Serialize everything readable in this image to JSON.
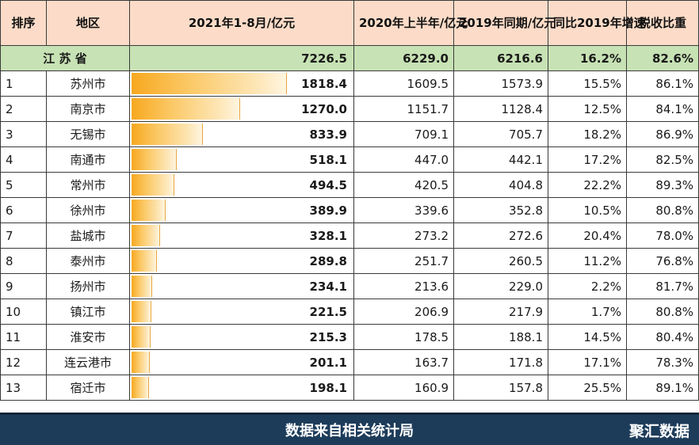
{
  "header": {
    "rank": "排序",
    "region": "地区",
    "col_2021": "2021年1-8月/亿元",
    "col_2020": "2020年上半年/亿元",
    "col_2019": "2019年同期/亿元",
    "col_growth": "同比2019年增速",
    "col_tax": "税收比重"
  },
  "total": {
    "label": "江 苏 省",
    "v2021": "7226.5",
    "v2020": "6229.0",
    "v2019": "6216.6",
    "growth": "16.2%",
    "tax": "82.6%"
  },
  "rows": [
    {
      "rank": "1",
      "region": "苏州市",
      "v2021": "1818.4",
      "v2020": "1609.5",
      "v2019": "1573.9",
      "growth": "15.5%",
      "tax": "86.1%"
    },
    {
      "rank": "2",
      "region": "南京市",
      "v2021": "1270.0",
      "v2020": "1151.7",
      "v2019": "1128.4",
      "growth": "12.5%",
      "tax": "84.1%"
    },
    {
      "rank": "3",
      "region": "无锡市",
      "v2021": "833.9",
      "v2020": "709.1",
      "v2019": "705.7",
      "growth": "18.2%",
      "tax": "86.9%"
    },
    {
      "rank": "4",
      "region": "南通市",
      "v2021": "518.1",
      "v2020": "447.0",
      "v2019": "442.1",
      "growth": "17.2%",
      "tax": "82.5%"
    },
    {
      "rank": "5",
      "region": "常州市",
      "v2021": "494.5",
      "v2020": "420.5",
      "v2019": "404.8",
      "growth": "22.2%",
      "tax": "89.3%"
    },
    {
      "rank": "6",
      "region": "徐州市",
      "v2021": "389.9",
      "v2020": "339.6",
      "v2019": "352.8",
      "growth": "10.5%",
      "tax": "80.8%"
    },
    {
      "rank": "7",
      "region": "盐城市",
      "v2021": "328.1",
      "v2020": "273.2",
      "v2019": "272.6",
      "growth": "20.4%",
      "tax": "78.0%"
    },
    {
      "rank": "8",
      "region": "泰州市",
      "v2021": "289.8",
      "v2020": "251.7",
      "v2019": "260.5",
      "growth": "11.2%",
      "tax": "76.8%"
    },
    {
      "rank": "9",
      "region": "扬州市",
      "v2021": "234.1",
      "v2020": "213.6",
      "v2019": "229.0",
      "growth": "2.2%",
      "tax": "81.7%"
    },
    {
      "rank": "10",
      "region": "镇江市",
      "v2021": "221.5",
      "v2020": "206.9",
      "v2019": "217.9",
      "growth": "1.7%",
      "tax": "80.8%"
    },
    {
      "rank": "11",
      "region": "淮安市",
      "v2021": "215.3",
      "v2020": "178.5",
      "v2019": "188.1",
      "growth": "14.5%",
      "tax": "80.4%"
    },
    {
      "rank": "12",
      "region": "连云港市",
      "v2021": "201.1",
      "v2020": "163.7",
      "v2019": "171.8",
      "growth": "17.1%",
      "tax": "78.3%"
    },
    {
      "rank": "13",
      "region": "宿迁市",
      "v2021": "198.1",
      "v2020": "160.9",
      "v2019": "157.8",
      "growth": "25.5%",
      "tax": "89.1%"
    }
  ],
  "footer": {
    "source": "数据来自相关统计局",
    "brand": "聚汇数据"
  },
  "colors": {
    "header_bg": "#fcdcc8",
    "total_bg": "#c7e2b4",
    "bar_color": "#f7a81f",
    "footer_bg": "#1d3c5a"
  },
  "chart_data": {
    "type": "table",
    "categories": [
      "苏州市",
      "南京市",
      "无锡市",
      "南通市",
      "常州市",
      "徐州市",
      "盐城市",
      "泰州市",
      "扬州市",
      "镇江市",
      "淮安市",
      "连云港市",
      "宿迁市"
    ],
    "series": [
      {
        "name": "2021年1-8月/亿元",
        "values": [
          1818.4,
          1270.0,
          833.9,
          518.1,
          494.5,
          389.9,
          328.1,
          289.8,
          234.1,
          221.5,
          215.3,
          201.1,
          198.1
        ]
      },
      {
        "name": "2020年上半年/亿元",
        "values": [
          1609.5,
          1151.7,
          709.1,
          447.0,
          420.5,
          339.6,
          273.2,
          251.7,
          213.6,
          206.9,
          178.5,
          163.7,
          160.9
        ]
      },
      {
        "name": "2019年同期/亿元",
        "values": [
          1573.9,
          1128.4,
          705.7,
          442.1,
          404.8,
          352.8,
          272.6,
          260.5,
          229.0,
          217.9,
          188.1,
          171.8,
          157.8
        ]
      },
      {
        "name": "同比2019年增速",
        "values": [
          15.5,
          12.5,
          18.2,
          17.2,
          22.2,
          10.5,
          20.4,
          11.2,
          2.2,
          1.7,
          14.5,
          17.1,
          25.5
        ]
      },
      {
        "name": "税收比重",
        "values": [
          86.1,
          84.1,
          86.9,
          82.5,
          89.3,
          80.8,
          78.0,
          76.8,
          81.7,
          80.8,
          80.4,
          78.3,
          89.1
        ]
      }
    ],
    "total": {
      "region": "江 苏 省",
      "values": [
        7226.5,
        6229.0,
        6216.6,
        16.2,
        82.6
      ]
    },
    "bar_column": "2021年1-8月/亿元",
    "bar_max": 1818.4
  }
}
